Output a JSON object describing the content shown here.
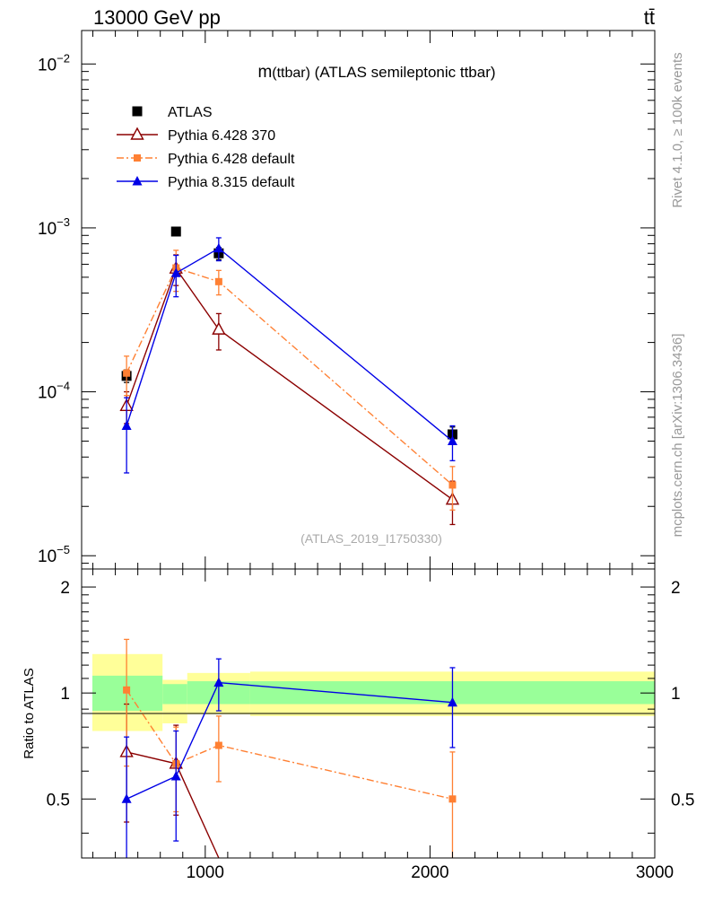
{
  "header": {
    "left": "13000 GeV pp",
    "right": "tt̄"
  },
  "side_labels": {
    "rivet": "Rivet 4.1.0, ≥ 100k events",
    "mcplots": "mcplots.cern.ch [arXiv:1306.3436]"
  },
  "chart_data": [
    {
      "type": "line",
      "title": "m(ttbar) (ATLAS semileptonic ttbar)",
      "title_parts": {
        "main": "m",
        "paren": "(ttbar)",
        "rest": " (ATLAS semileptonic ttbar)"
      },
      "watermark": "(ATLAS_2019_I1750330)",
      "xlabel": "",
      "ylabel": "",
      "xlim": [
        450,
        3000
      ],
      "ylim": [
        8.3e-06,
        0.016
      ],
      "yscale": "log",
      "y_ticks": [
        {
          "value": 0.01,
          "mant": "10",
          "exp": "−2"
        },
        {
          "value": 0.001,
          "mant": "10",
          "exp": "−3"
        },
        {
          "value": 0.0001,
          "mant": "10",
          "exp": "−4"
        },
        {
          "value": 1e-05,
          "mant": "10",
          "exp": "−5"
        }
      ],
      "legend_position": "top-left",
      "series": [
        {
          "name": "ATLAS",
          "marker": "square",
          "color": "#000000",
          "x": [
            650,
            870,
            1060,
            2100
          ],
          "y": [
            0.000125,
            0.00095,
            0.0007,
            5.5e-05
          ],
          "err": [
            1.1e-05,
            3e-05,
            6e-05,
            6e-06
          ]
        },
        {
          "name": "Pythia 6.428 370",
          "marker": "triangle-open",
          "color": "#8b0000",
          "line": "solid",
          "x": [
            650,
            870,
            1060,
            2100
          ],
          "y": [
            8.2e-05,
            0.000565,
            0.00024,
            2.2e-05
          ],
          "err": [
            1.8e-05,
            0.00012,
            6e-05,
            6.5e-06
          ]
        },
        {
          "name": "Pythia 6.428 default",
          "marker": "square-small",
          "color": "#ff8033",
          "line": "dashdot",
          "x": [
            650,
            870,
            1060,
            2100
          ],
          "y": [
            0.00013,
            0.00057,
            0.00047,
            2.7e-05
          ],
          "err": [
            3.5e-05,
            0.00016,
            8e-05,
            8e-06
          ]
        },
        {
          "name": "Pythia 8.315 default",
          "marker": "triangle",
          "color": "#0000e6",
          "line": "solid",
          "x": [
            650,
            870,
            1060,
            2100
          ],
          "y": [
            6.2e-05,
            0.00053,
            0.00075,
            5e-05
          ],
          "err": [
            3e-05,
            0.00015,
            0.00012,
            1.2e-05
          ]
        }
      ]
    },
    {
      "type": "line",
      "title": "",
      "xlabel": "",
      "ylabel": "Ratio to ATLAS",
      "xlim": [
        450,
        3000
      ],
      "ylim": [
        0.34,
        2.25
      ],
      "yscale": "log",
      "x_ticks": [
        1000,
        2000,
        3000
      ],
      "y_ticks": [
        {
          "value": 0.5,
          "label": "0.5"
        },
        {
          "value": 1,
          "label": "1"
        },
        {
          "value": 2,
          "label": "2"
        }
      ],
      "bands": [
        {
          "x0": 450,
          "x1": 810,
          "yellow": [
            0.78,
            1.29
          ],
          "green": [
            0.89,
            1.12
          ]
        },
        {
          "x0": 810,
          "x1": 920,
          "yellow": [
            0.82,
            1.09
          ],
          "green": [
            0.93,
            1.06
          ]
        },
        {
          "x0": 920,
          "x1": 1200,
          "yellow": [
            0.87,
            1.14
          ],
          "green": [
            0.93,
            1.08
          ]
        },
        {
          "x0": 1200,
          "x1": 3000,
          "yellow": [
            0.86,
            1.15
          ],
          "green": [
            0.93,
            1.08
          ]
        }
      ],
      "series": [
        {
          "name": "Pythia 6.428 370",
          "marker": "triangle-open",
          "color": "#8b0000",
          "line": "solid",
          "x": [
            650,
            870,
            1060
          ],
          "y": [
            0.68,
            0.63,
            0.34
          ],
          "err": [
            0.25,
            0.18,
            0
          ],
          "markers_shown": [
            true,
            true,
            false
          ]
        },
        {
          "name": "Pythia 6.428 default",
          "marker": "square-small",
          "color": "#ff8033",
          "line": "dashdot",
          "x": [
            650,
            870,
            1060,
            2100
          ],
          "y": [
            1.02,
            0.63,
            0.71,
            0.5
          ],
          "err": [
            0.4,
            0.17,
            0.15,
            0.18
          ]
        },
        {
          "name": "Pythia 8.315 default",
          "marker": "triangle",
          "color": "#0000e6",
          "line": "solid",
          "x": [
            650,
            870,
            1060,
            2100
          ],
          "y": [
            0.5,
            0.58,
            1.07,
            0.94
          ],
          "err": [
            0.25,
            0.2,
            0.18,
            0.24
          ]
        }
      ]
    }
  ]
}
